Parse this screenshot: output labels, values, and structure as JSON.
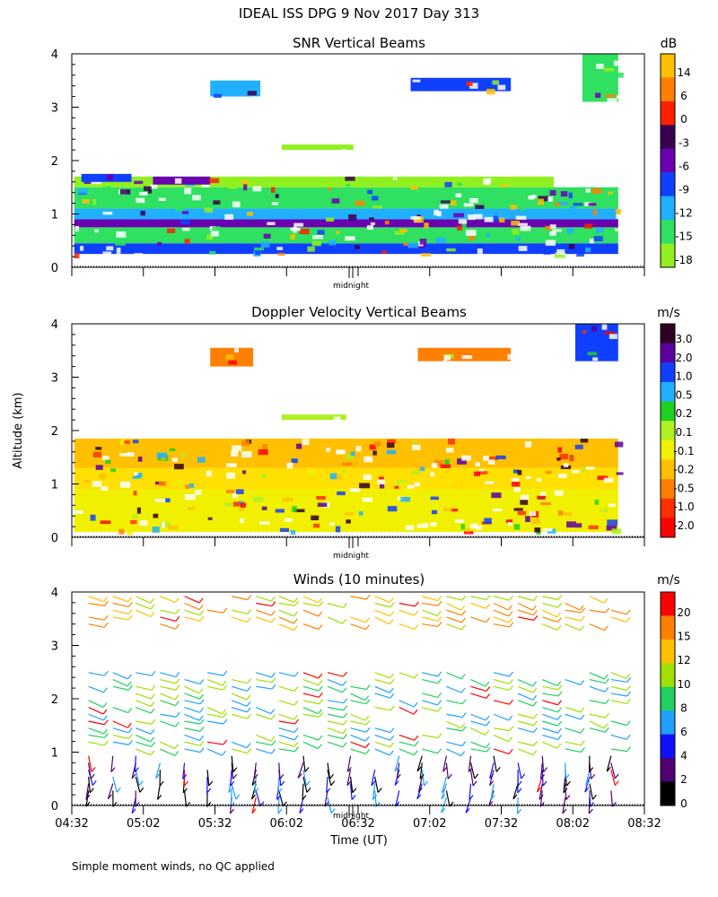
{
  "title": "IDEAL ISS DPG    9 Nov 2017 Day 313",
  "ylabel": "Altitude (km)",
  "xlabel": "Time (UT)",
  "footnote": "Simple moment winds, no QC applied",
  "midnight_label": "midnight",
  "x_ticks": [
    "04:32",
    "05:02",
    "05:32",
    "06:02",
    "06:32",
    "07:02",
    "07:32",
    "08:02",
    "08:32"
  ],
  "y_ticks": [
    "0",
    "1",
    "2",
    "3",
    "4"
  ],
  "chart_data": [
    {
      "type": "heatmap",
      "title": "SNR Vertical Beams",
      "colorbar_unit": "dB",
      "colorbar_labels": [
        "14",
        "6",
        "0",
        "-3",
        "-6",
        "-9",
        "-12",
        "-15",
        "-18"
      ],
      "colorbar_colors": [
        "#ffc000",
        "#ff8000",
        "#ff2000",
        "#3a0050",
        "#6a00b0",
        "#1040ff",
        "#20b0ff",
        "#30e060",
        "#90f020"
      ],
      "x": [
        "04:32",
        "05:02",
        "05:32",
        "06:02",
        "06:32",
        "07:02",
        "07:32",
        "08:02",
        "08:32"
      ],
      "ylim": [
        0,
        4
      ],
      "xlim_hours": [
        4.533,
        8.533
      ],
      "layers": [
        {
          "y0": 0.25,
          "y1": 0.45,
          "x0": 4.55,
          "x1": 8.35,
          "color": "#1040ff"
        },
        {
          "y0": 0.45,
          "y1": 0.75,
          "x0": 4.55,
          "x1": 8.35,
          "color": "#30e060"
        },
        {
          "y0": 0.75,
          "y1": 0.9,
          "x0": 4.55,
          "x1": 8.35,
          "color": "#6a00b0"
        },
        {
          "y0": 0.9,
          "y1": 1.1,
          "x0": 4.55,
          "x1": 8.35,
          "color": "#20b0ff"
        },
        {
          "y0": 1.1,
          "y1": 1.5,
          "x0": 4.55,
          "x1": 8.35,
          "color": "#30e060"
        },
        {
          "y0": 1.5,
          "y1": 1.7,
          "x0": 4.55,
          "x1": 7.9,
          "color": "#90f020"
        },
        {
          "y0": 1.6,
          "y1": 1.75,
          "x0": 4.6,
          "x1": 4.95,
          "color": "#1040ff"
        },
        {
          "y0": 1.55,
          "y1": 1.7,
          "x0": 5.1,
          "x1": 5.5,
          "color": "#6a00b0"
        },
        {
          "y0": 2.2,
          "y1": 2.3,
          "x0": 6.0,
          "x1": 6.5,
          "color": "#90f020"
        },
        {
          "y0": 3.2,
          "y1": 3.5,
          "x0": 5.5,
          "x1": 5.85,
          "color": "#20b0ff"
        },
        {
          "y0": 3.3,
          "y1": 3.55,
          "x0": 6.9,
          "x1": 7.6,
          "color": "#1040ff"
        },
        {
          "y0": 3.1,
          "y1": 4.0,
          "x0": 8.1,
          "x1": 8.35,
          "color": "#30e060"
        }
      ]
    },
    {
      "type": "heatmap",
      "title": "Doppler Velocity Vertical Beams",
      "colorbar_unit": "m/s",
      "colorbar_labels": [
        "3.0",
        "2.0",
        "1.0",
        "0.5",
        "0.2",
        "0.1",
        "-0.1",
        "-0.2",
        "-0.5",
        "-1.0",
        "-2.0"
      ],
      "colorbar_colors": [
        "#300020",
        "#5a00a0",
        "#1040ff",
        "#20b0ff",
        "#20d020",
        "#b0f020",
        "#f0f000",
        "#ffc000",
        "#ff8000",
        "#ff3000",
        "#ff0000"
      ],
      "ylim": [
        0,
        4
      ],
      "xlim_hours": [
        4.533,
        8.533
      ],
      "layers": [
        {
          "y0": 0.1,
          "y1": 0.9,
          "x0": 4.55,
          "x1": 8.35,
          "color": "#f0f000"
        },
        {
          "y0": 0.9,
          "y1": 1.3,
          "x0": 4.55,
          "x1": 8.35,
          "color": "#ffe000"
        },
        {
          "y0": 1.3,
          "y1": 1.85,
          "x0": 4.55,
          "x1": 8.35,
          "color": "#ffc000"
        },
        {
          "y0": 2.2,
          "y1": 2.3,
          "x0": 6.0,
          "x1": 6.45,
          "color": "#b0f020"
        },
        {
          "y0": 3.2,
          "y1": 3.55,
          "x0": 5.5,
          "x1": 5.8,
          "color": "#ff8000"
        },
        {
          "y0": 3.3,
          "y1": 3.55,
          "x0": 6.95,
          "x1": 7.6,
          "color": "#ff8000"
        },
        {
          "y0": 3.3,
          "y1": 4.0,
          "x0": 8.05,
          "x1": 8.35,
          "color": "#1040ff"
        }
      ]
    },
    {
      "type": "scatter",
      "title": "Winds (10 minutes)",
      "colorbar_unit": "m/s",
      "colorbar_labels": [
        "20",
        "15",
        "12",
        "10",
        "8",
        "6",
        "4",
        "2",
        "0"
      ],
      "colorbar_colors": [
        "#ff0000",
        "#ff8000",
        "#ffc000",
        "#a0e000",
        "#20d060",
        "#20a0ff",
        "#1010ff",
        "#500070",
        "#000000"
      ],
      "ylim": [
        0,
        4
      ],
      "xlim_hours": [
        4.533,
        8.533
      ],
      "profile_times_hours": [
        4.65,
        4.82,
        4.98,
        5.15,
        5.32,
        5.48,
        5.65,
        5.82,
        5.98,
        6.15,
        6.32,
        6.48,
        6.65,
        6.82,
        6.98,
        7.15,
        7.32,
        7.48,
        7.65,
        7.82,
        7.98,
        8.15,
        8.3
      ]
    }
  ]
}
